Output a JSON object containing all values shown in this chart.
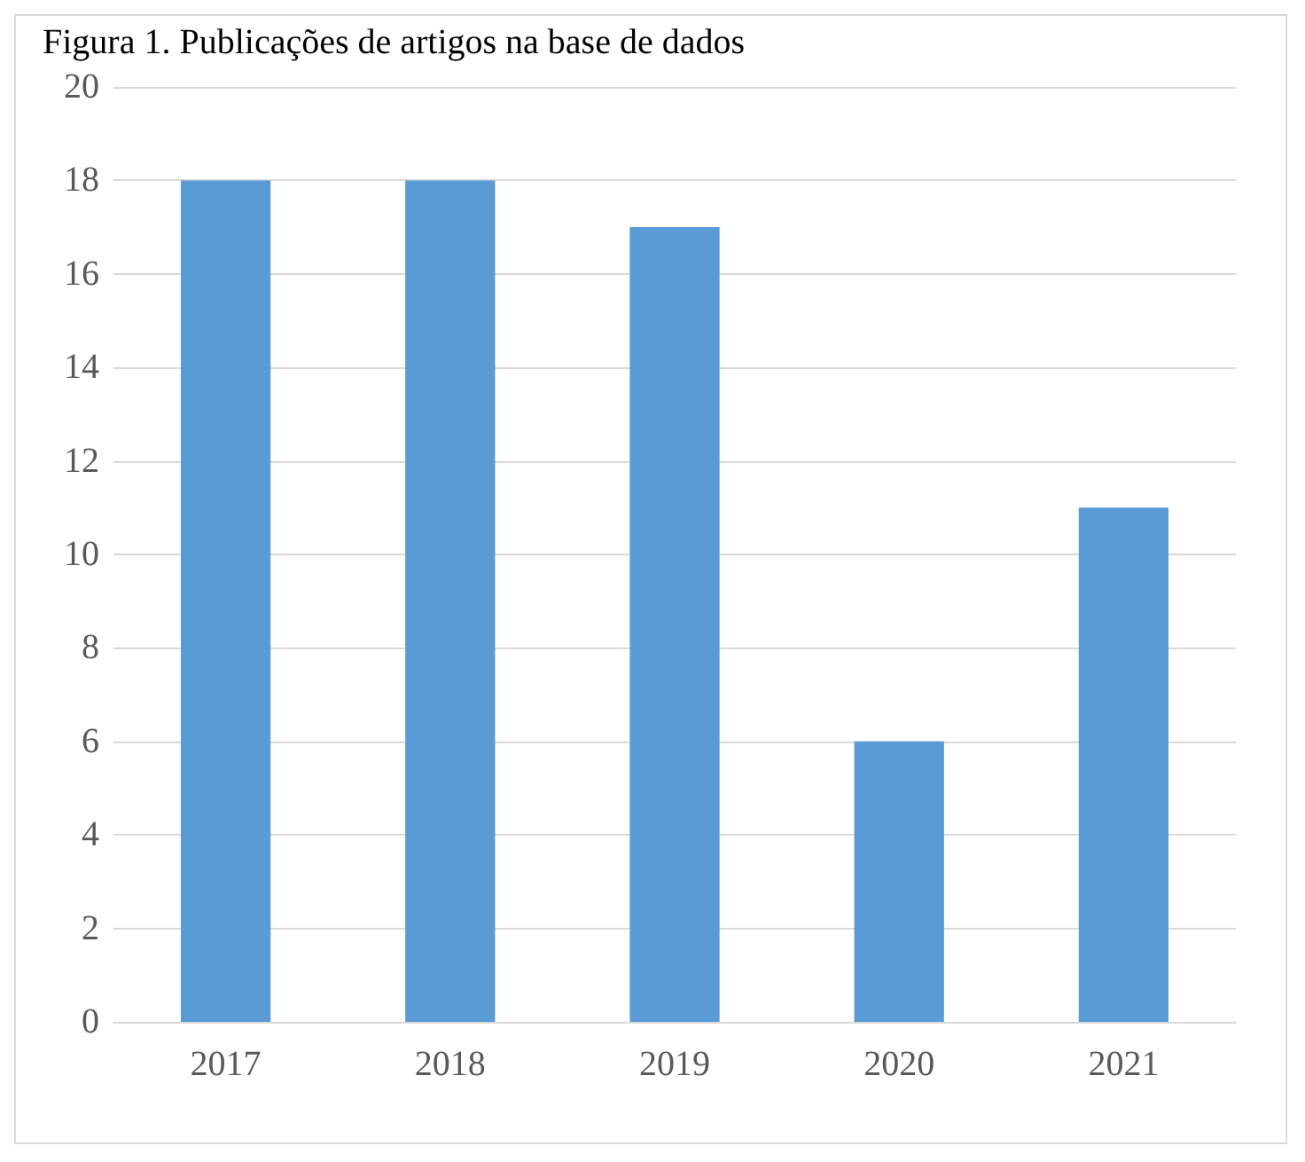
{
  "chart_data": {
    "type": "bar",
    "title": "Figura 1. Publicações de artigos na base de dados",
    "categories": [
      "2017",
      "2018",
      "2019",
      "2020",
      "2021"
    ],
    "values": [
      18,
      18,
      17,
      6,
      11
    ],
    "color": "#5b9bd5",
    "ylim": [
      0,
      20
    ],
    "yticks": [
      0,
      2,
      4,
      6,
      8,
      10,
      12,
      14,
      16,
      18,
      20
    ],
    "grid": "y"
  }
}
